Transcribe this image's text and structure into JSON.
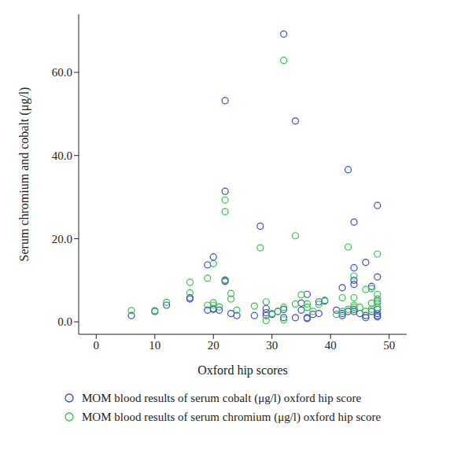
{
  "chart_data": {
    "type": "scatter",
    "x_label": "Oxford hip scores",
    "y_label": "Serum chromium and cobalt (μg/l)",
    "xlim": [
      -3,
      53
    ],
    "xticks": [
      0,
      10,
      20,
      30,
      40,
      50
    ],
    "ylim": [
      -3,
      74
    ],
    "yticks": [
      {
        "value": 0,
        "label": "0.0"
      },
      {
        "value": 20,
        "label": "20.0"
      },
      {
        "value": 40,
        "label": "40.0"
      },
      {
        "value": 60,
        "label": "60.0"
      }
    ],
    "grid": false,
    "legend": "bottom",
    "marker": "circle",
    "series": [
      {
        "name": "MOM blood results of serum cobalt (μg/l) oxford hip score",
        "color": "#3a4dbf",
        "x": [
          6,
          10,
          12,
          16,
          16,
          19,
          19,
          20,
          20,
          20,
          21,
          22,
          22,
          22,
          22,
          23,
          24,
          27,
          28,
          29,
          29,
          29,
          30,
          31,
          32,
          32,
          32,
          34,
          34,
          35,
          35,
          36,
          36,
          36,
          37,
          38,
          38,
          39,
          41,
          42,
          42,
          42,
          43,
          43,
          44,
          44,
          44,
          44,
          44,
          44,
          45,
          46,
          46,
          46,
          47,
          47,
          48,
          48,
          48,
          48,
          48,
          48,
          48
        ],
        "values": [
          1.5,
          2.5,
          4.0,
          5.5,
          5.8,
          13.7,
          2.8,
          15.6,
          3.2,
          3.0,
          2.8,
          53.2,
          31.4,
          10.0,
          9.7,
          2.0,
          1.5,
          1.5,
          23.0,
          1.5,
          2.2,
          3.2,
          1.8,
          2.5,
          69.2,
          3.0,
          1.0,
          48.3,
          1.0,
          4.5,
          2.8,
          6.6,
          1.0,
          0.8,
          1.8,
          4.8,
          2.0,
          5.0,
          2.8,
          8.2,
          1.5,
          2.0,
          36.6,
          2.5,
          24.0,
          13.0,
          10.0,
          9.0,
          3.0,
          2.5,
          2.0,
          14.3,
          1.5,
          1.0,
          8.5,
          2.5,
          28.0,
          10.8,
          5.0,
          3.0,
          2.0,
          1.5,
          1.2
        ]
      },
      {
        "name": "MOM blood results of serum chromium (μg/l) oxford hip score",
        "color": "#34c24a",
        "x": [
          6,
          10,
          12,
          16,
          16,
          19,
          19,
          20,
          20,
          20,
          21,
          22,
          22,
          22,
          23,
          23,
          24,
          27,
          28,
          29,
          29,
          30,
          31,
          32,
          32,
          32,
          34,
          34,
          35,
          36,
          36,
          37,
          38,
          39,
          41,
          42,
          42,
          43,
          43,
          44,
          44,
          44,
          44,
          45,
          46,
          46,
          47,
          47,
          47,
          48,
          48,
          48,
          48,
          48
        ],
        "values": [
          2.7,
          2.7,
          4.7,
          9.5,
          7.0,
          10.5,
          4.0,
          14.0,
          4.6,
          4.0,
          3.6,
          29.3,
          26.5,
          10.1,
          5.5,
          6.8,
          2.8,
          3.8,
          17.8,
          0.3,
          4.8,
          2.0,
          2.5,
          62.9,
          3.5,
          0.5,
          20.7,
          4.3,
          6.5,
          3.5,
          4.3,
          2.5,
          4.2,
          5.2,
          1.8,
          5.8,
          2.5,
          18.0,
          3.0,
          11.0,
          5.8,
          4.0,
          3.5,
          3.5,
          7.8,
          2.5,
          4.5,
          3.0,
          8.0,
          16.3,
          6.6,
          5.5,
          4.5,
          3.5
        ]
      }
    ]
  }
}
